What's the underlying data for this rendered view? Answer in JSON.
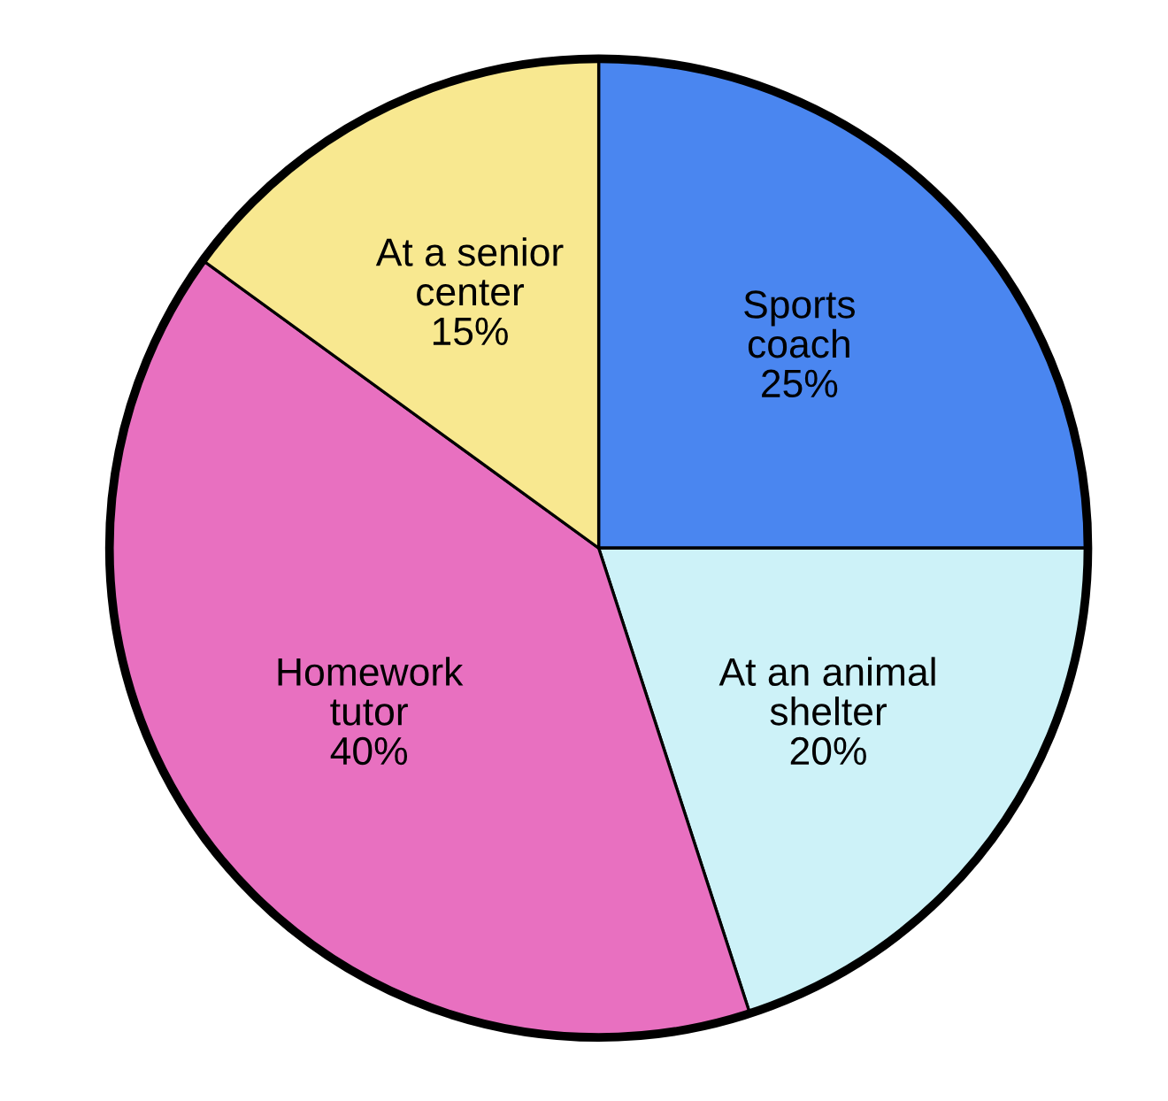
{
  "chart_data": {
    "type": "pie",
    "categories": [
      "Sports coach",
      "At an animal shelter",
      "Homework tutor",
      "At a senior center"
    ],
    "values": [
      25,
      20,
      40,
      15
    ],
    "value_labels": [
      "25%",
      "20%",
      "40%",
      "15%"
    ],
    "colors": [
      "#4a86f0",
      "#cdf2f8",
      "#e870c0",
      "#f8e890"
    ]
  }
}
